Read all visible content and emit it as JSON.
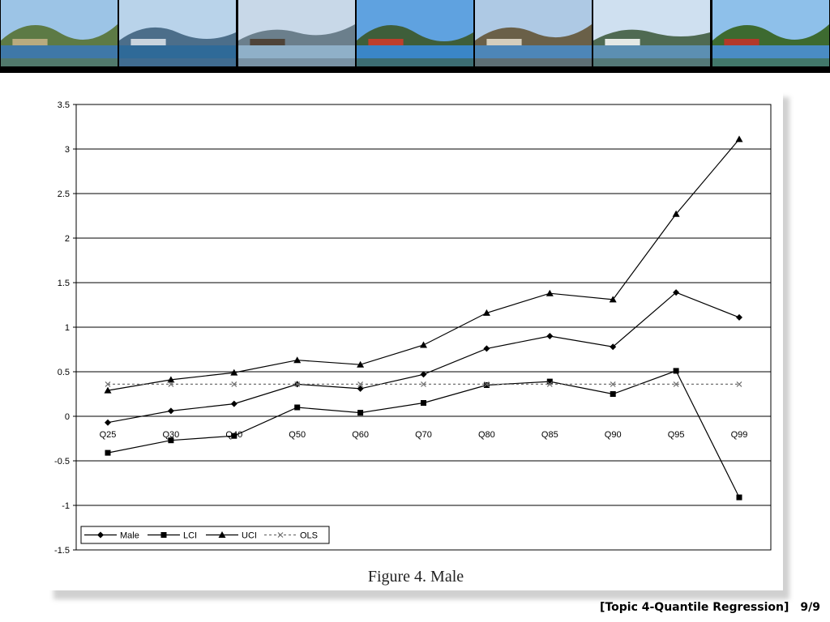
{
  "banner": {
    "photos": [
      {
        "sky": "#9cc4e6",
        "hill": "#5d7a45",
        "water": "#3f78a8",
        "accent": "#c9b48a",
        "icon": "hilltop-village-photo"
      },
      {
        "sky": "#b9d3ea",
        "hill": "#4c6e8a",
        "water": "#2f6a98",
        "accent": "#dfe6ec",
        "icon": "lake-city-photo"
      },
      {
        "sky": "#c8d8e8",
        "hill": "#6b7f8c",
        "water": "#8fb0c8",
        "accent": "#4a3a2a",
        "icon": "lakeside-promenade-photo"
      },
      {
        "sky": "#5fa2e0",
        "hill": "#3e5e3a",
        "water": "#3a86c8",
        "accent": "#d43a2a",
        "icon": "flower-garden-photo"
      },
      {
        "sky": "#aec9e4",
        "hill": "#6a6048",
        "water": "#4d86b8",
        "accent": "#e8e2d2",
        "icon": "mountain-lake-photo"
      },
      {
        "sky": "#cfe0f0",
        "hill": "#4f6a52",
        "water": "#5c8fb2",
        "accent": "#ffffff",
        "icon": "alpine-valley-photo"
      },
      {
        "sky": "#8ec0ea",
        "hill": "#3d6a30",
        "water": "#4a8cc4",
        "accent": "#c8302a",
        "icon": "park-bench-photo"
      }
    ]
  },
  "chart_data": {
    "type": "line",
    "categories": [
      "Q25",
      "Q30",
      "Q40",
      "Q50",
      "Q60",
      "Q70",
      "Q80",
      "Q85",
      "Q90",
      "Q95",
      "Q99"
    ],
    "series": [
      {
        "name": "Male",
        "marker": "diamond",
        "dash": "solid",
        "values": [
          -0.07,
          0.06,
          0.14,
          0.36,
          0.31,
          0.47,
          0.76,
          0.9,
          0.78,
          1.39,
          1.11
        ]
      },
      {
        "name": "LCI",
        "marker": "square",
        "dash": "solid",
        "values": [
          -0.41,
          -0.27,
          -0.22,
          0.1,
          0.04,
          0.15,
          0.35,
          0.39,
          0.25,
          0.51,
          -0.91
        ]
      },
      {
        "name": "UCI",
        "marker": "triangle",
        "dash": "solid",
        "values": [
          0.29,
          0.41,
          0.49,
          0.63,
          0.58,
          0.8,
          1.16,
          1.38,
          1.31,
          2.27,
          3.11
        ]
      },
      {
        "name": "OLS",
        "marker": "x",
        "dash": "dotted",
        "values": [
          0.36,
          0.36,
          0.36,
          0.36,
          0.36,
          0.36,
          0.36,
          0.36,
          0.36,
          0.36,
          0.36
        ]
      }
    ],
    "ylim": [
      -1.5,
      3.5
    ],
    "yticks": [
      3.5,
      3,
      2.5,
      2,
      1.5,
      1,
      0.5,
      0,
      -0.5,
      -1,
      -1.5
    ],
    "ytick_labels": [
      "3.5",
      "3",
      "2.5",
      "2",
      "1.5",
      "1",
      "0.5",
      "0",
      "-0.5",
      "-1",
      "-1.5"
    ],
    "grid": true,
    "legend_position": "bottom-left",
    "title": "",
    "xlabel": "",
    "ylabel": "",
    "line_color": "#000000",
    "ols_color": "#707070"
  },
  "caption": "Figure 4.  Male",
  "footer": {
    "topic": "[Topic 4-Quantile Regression]",
    "page": "9/9"
  }
}
